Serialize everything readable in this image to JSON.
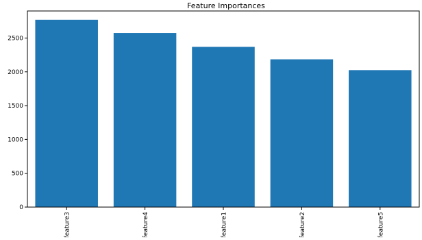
{
  "chart_data": {
    "type": "bar",
    "title": "Feature Importances",
    "xlabel": "",
    "ylabel": "",
    "categories": [
      "feature3",
      "feature4",
      "feature1",
      "feature2",
      "feature5"
    ],
    "values": [
      2770,
      2575,
      2370,
      2185,
      2025
    ],
    "ylim": [
      0,
      2900
    ],
    "yticks": [
      0,
      500,
      1000,
      1500,
      2000,
      2500
    ],
    "grid": false,
    "legend": "none",
    "colors": {
      "bar": "#1f77b4",
      "axis": "#000000",
      "text": "#000000"
    }
  }
}
